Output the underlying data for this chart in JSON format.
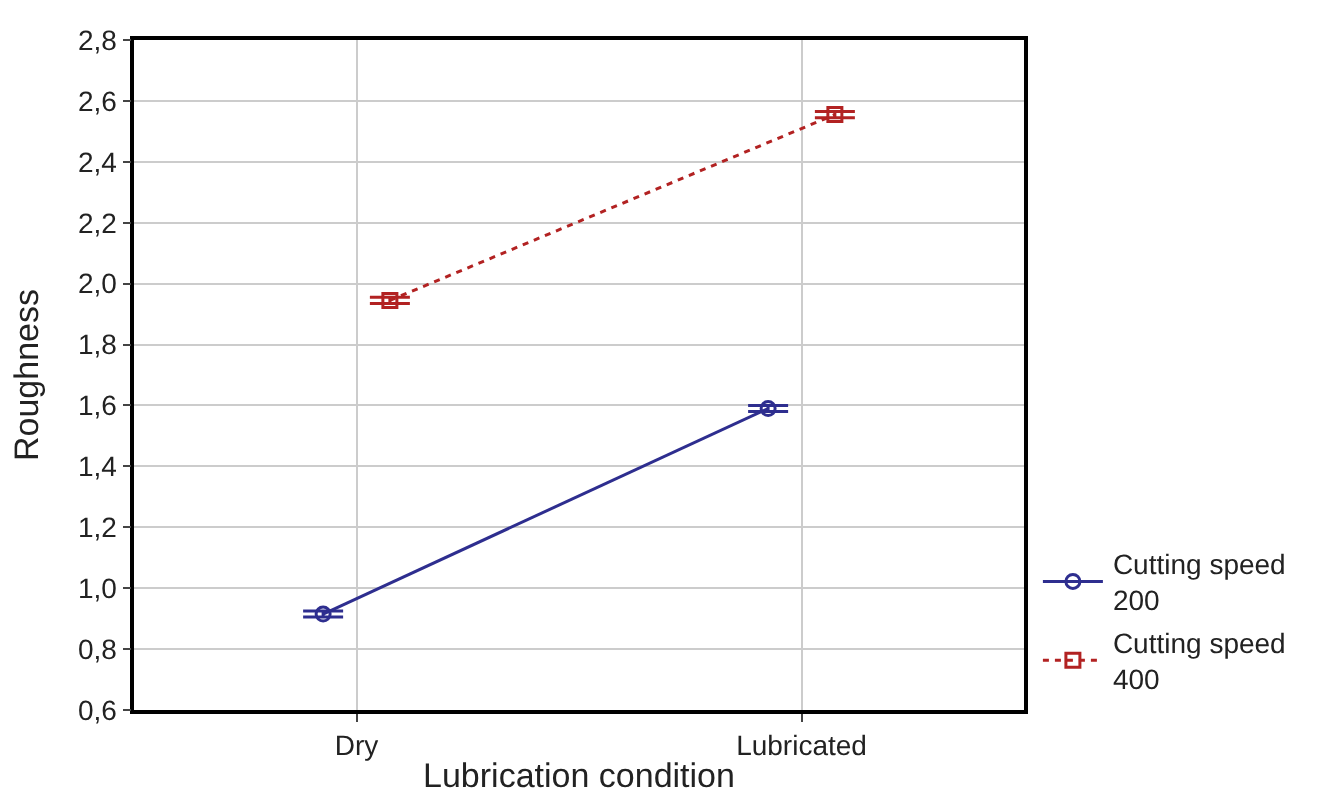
{
  "chart_data": {
    "type": "line",
    "xlabel": "Lubrication condition",
    "ylabel": "Roughness",
    "categories": [
      "Dry",
      "Lubricated"
    ],
    "series": [
      {
        "name": "Cutting speed 200",
        "color": "#2e2e8f",
        "values": [
          0.915,
          1.59
        ],
        "errors": [
          0.01,
          0.01
        ],
        "marker": "circle",
        "line_style": "solid"
      },
      {
        "name": "Cutting speed 400",
        "color": "#b22222",
        "values": [
          1.945,
          2.555
        ],
        "errors": [
          0.01,
          0.01
        ],
        "marker": "square",
        "line_style": "dotted"
      }
    ],
    "ylim": [
      0.6,
      2.8
    ],
    "yticks": [
      {
        "value": 0.6,
        "label": "0,6"
      },
      {
        "value": 0.8,
        "label": "0,8"
      },
      {
        "value": 1.0,
        "label": "1,0"
      },
      {
        "value": 1.2,
        "label": "1,2"
      },
      {
        "value": 1.4,
        "label": "1,4"
      },
      {
        "value": 1.6,
        "label": "1,6"
      },
      {
        "value": 1.8,
        "label": "1,8"
      },
      {
        "value": 2.0,
        "label": "2,0"
      },
      {
        "value": 2.2,
        "label": "2,2"
      },
      {
        "value": 2.4,
        "label": "2,4"
      },
      {
        "value": 2.6,
        "label": "2,6"
      },
      {
        "value": 2.8,
        "label": "2,8"
      }
    ],
    "grid": true,
    "legend": "bottom right"
  }
}
